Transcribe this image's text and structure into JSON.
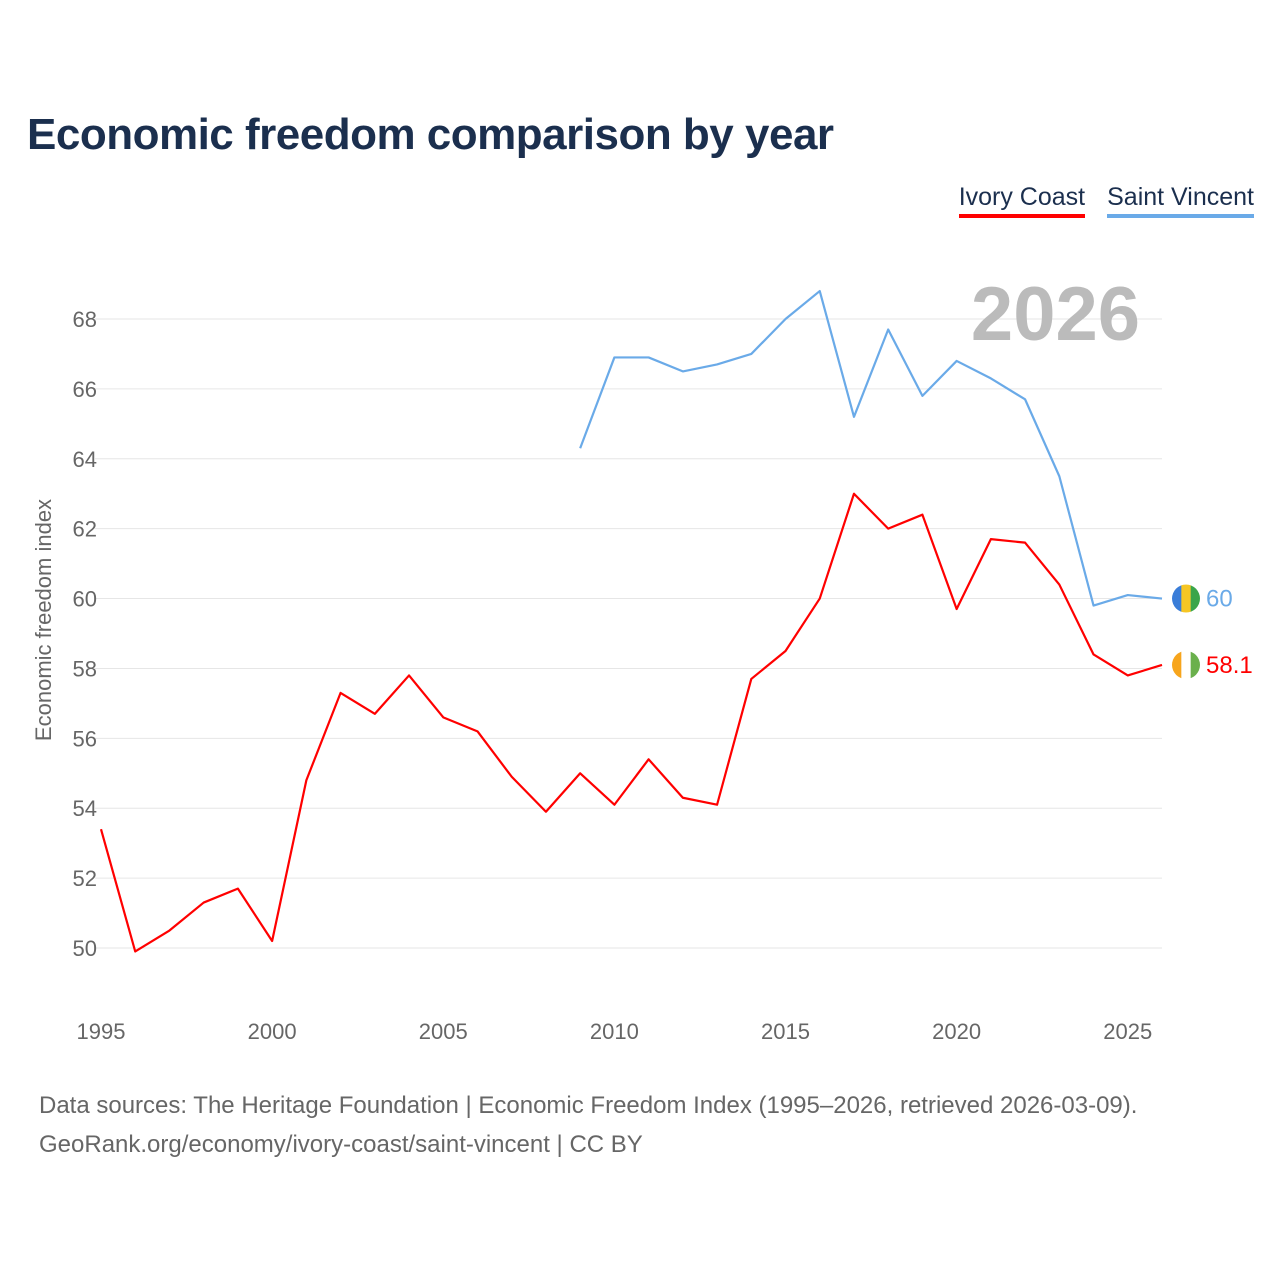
{
  "title": "Economic freedom comparison by year",
  "legend": [
    {
      "label": "Ivory Coast",
      "color": "#ff0000"
    },
    {
      "label": "Saint Vincent",
      "color": "#6aaae8"
    }
  ],
  "source": {
    "line1": "Data sources: The Heritage Foundation | Economic Freedom Index (1995–2026, retrieved 2026-03-09).",
    "line2": "GeoRank.org/economy/ivory-coast/saint-vincent | CC BY"
  },
  "chart_data": {
    "type": "line",
    "title": "Economic freedom comparison by year",
    "xlabel": "",
    "ylabel": "Economic freedom index",
    "year_label": "2026",
    "xlim": [
      1995,
      2026
    ],
    "ylim": [
      50,
      68
    ],
    "xticks": [
      "1995",
      "2000",
      "2005",
      "2010",
      "2015",
      "2020",
      "2025"
    ],
    "yticks": [
      "50",
      "52",
      "54",
      "56",
      "58",
      "60",
      "62",
      "64",
      "66",
      "68"
    ],
    "grid": true,
    "series": [
      {
        "name": "Ivory Coast",
        "color": "#ff0000",
        "end_label": "58.1",
        "x": [
          1995,
          1996,
          1997,
          1998,
          1999,
          2000,
          2001,
          2002,
          2003,
          2004,
          2005,
          2006,
          2007,
          2008,
          2009,
          2010,
          2011,
          2012,
          2013,
          2014,
          2015,
          2016,
          2017,
          2018,
          2019,
          2020,
          2021,
          2022,
          2023,
          2024,
          2025,
          2026
        ],
        "values": [
          53.4,
          49.9,
          50.5,
          51.3,
          51.7,
          50.2,
          54.8,
          57.3,
          56.7,
          57.8,
          56.6,
          56.2,
          54.9,
          53.9,
          55.0,
          54.1,
          55.4,
          54.3,
          54.1,
          57.7,
          58.5,
          60.0,
          63.0,
          62.0,
          62.4,
          59.7,
          61.7,
          61.6,
          60.4,
          58.4,
          57.8,
          58.1
        ]
      },
      {
        "name": "Saint Vincent",
        "color": "#6aaae8",
        "end_label": "60",
        "x": [
          2009,
          2010,
          2011,
          2012,
          2013,
          2014,
          2015,
          2016,
          2017,
          2018,
          2019,
          2020,
          2021,
          2022,
          2023,
          2024,
          2025,
          2026
        ],
        "values": [
          64.3,
          66.9,
          66.9,
          66.5,
          66.7,
          67.0,
          68.0,
          68.8,
          65.2,
          67.7,
          65.8,
          66.8,
          66.3,
          65.7,
          63.5,
          59.8,
          60.1,
          60.0
        ]
      }
    ]
  }
}
